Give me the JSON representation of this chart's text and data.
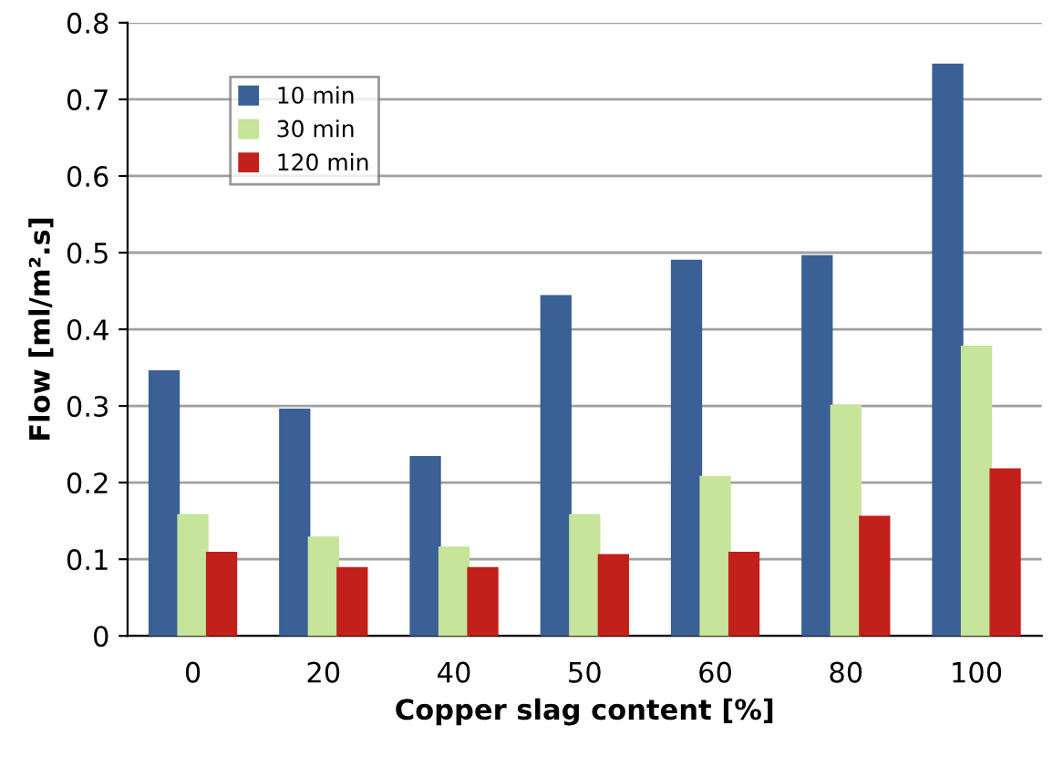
{
  "chart_data": {
    "type": "bar",
    "xlabel": "Copper slag content [%]",
    "ylabel": "Flow [ml/m².s]",
    "categories": [
      "0",
      "20",
      "40",
      "50",
      "60",
      "80",
      "100"
    ],
    "series": [
      {
        "name": "10 min",
        "color": "#3a6095",
        "values": [
          0.345,
          0.295,
          0.233,
          0.443,
          0.489,
          0.495,
          0.745
        ]
      },
      {
        "name": "30 min",
        "color": "#c6e49a",
        "values": [
          0.157,
          0.128,
          0.115,
          0.157,
          0.207,
          0.3,
          0.377
        ]
      },
      {
        "name": "120 min",
        "color": "#c2201b",
        "values": [
          0.108,
          0.088,
          0.088,
          0.105,
          0.108,
          0.155,
          0.217
        ]
      }
    ],
    "ylim": [
      0,
      0.8
    ],
    "yticks": [
      0,
      0.1,
      0.2,
      0.3,
      0.4,
      0.5,
      0.6,
      0.7,
      0.8
    ],
    "grid": "y",
    "legend": "top left"
  }
}
